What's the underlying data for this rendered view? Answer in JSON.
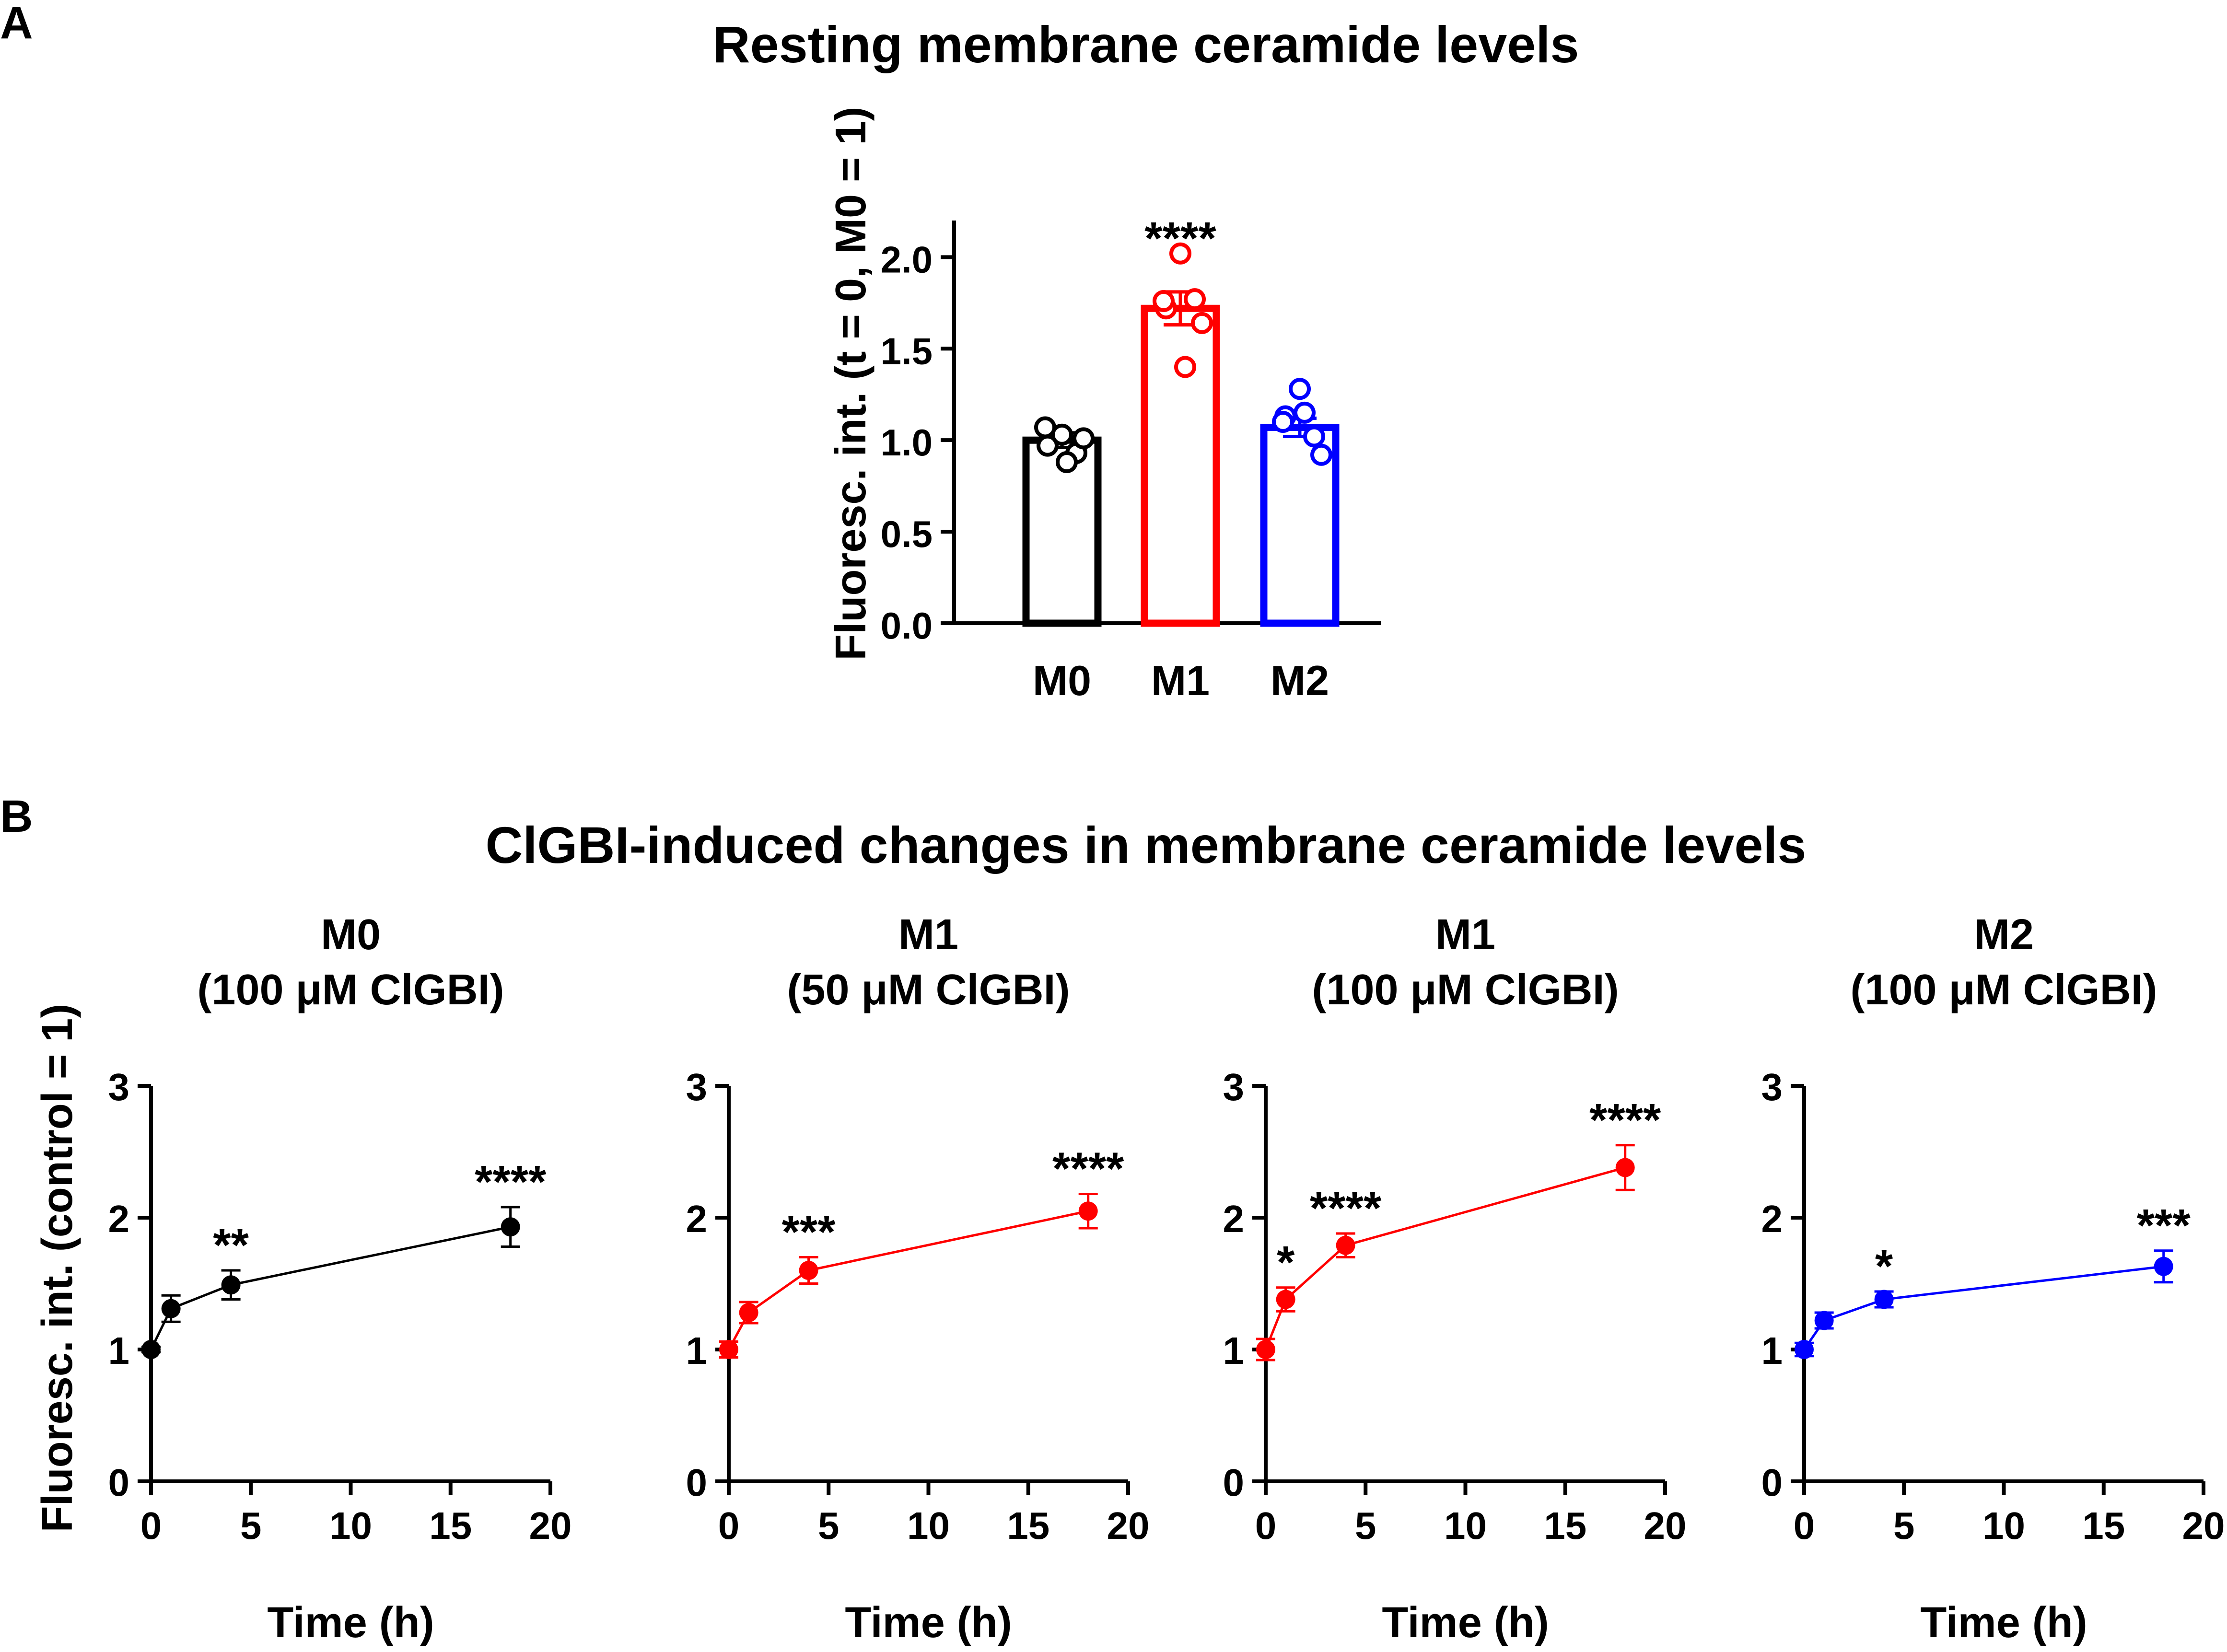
{
  "panel_a": {
    "letter": "A",
    "title": "Resting membrane ceramide levels",
    "ylabel": "Fluoresc. int. (t = 0, M0 = 1)"
  },
  "panel_b": {
    "letter": "B",
    "title": "ClGBI-induced changes in membrane ceramide levels",
    "ylabel": "Fluoresc. int. (control = 1)"
  },
  "chart_data": [
    {
      "type": "bar",
      "panel": "A",
      "title": "Resting membrane ceramide levels",
      "xlabel": "",
      "ylabel": "Fluoresc. int. (t = 0, M0 = 1)",
      "ylim": [
        0,
        2.2
      ],
      "yticks": [
        0.0,
        0.5,
        1.0,
        1.5,
        2.0
      ],
      "ytick_labels": [
        "0.0",
        "0.5",
        "1.0",
        "1.5",
        "2.0"
      ],
      "categories": [
        "M0",
        "M1",
        "M2"
      ],
      "values": [
        1.0,
        1.72,
        1.07
      ],
      "sem": [
        0.04,
        0.09,
        0.05
      ],
      "colors": [
        "#000000",
        "#ff0000",
        "#0000ff"
      ],
      "points": [
        [
          0.97,
          1.03,
          0.93,
          1.01,
          1.07,
          0.88
        ],
        [
          1.72,
          2.02,
          1.77,
          1.64,
          1.76,
          1.4
        ],
        [
          1.13,
          1.28,
          1.02,
          0.92,
          1.1,
          1.15
        ]
      ],
      "significance": [
        "",
        "****",
        ""
      ]
    },
    {
      "type": "line",
      "panel": "B",
      "title": "M0",
      "subtitle": "(100 μM ClGBI)",
      "xlabel": "Time (h)",
      "ylabel": "Fluoresc. int. (control = 1)",
      "color": "#000000",
      "xlim": [
        0,
        20
      ],
      "ylim": [
        0,
        3
      ],
      "xticks": [
        0,
        5,
        10,
        15,
        20
      ],
      "yticks": [
        0,
        1,
        2,
        3
      ],
      "x": [
        0,
        1,
        4,
        18
      ],
      "y": [
        1.0,
        1.31,
        1.49,
        1.93
      ],
      "err": [
        0.02,
        0.1,
        0.11,
        0.15
      ],
      "significance": [
        "",
        "",
        "**",
        "****"
      ]
    },
    {
      "type": "line",
      "panel": "B",
      "title": "M1",
      "subtitle": "(50 μM ClGBI)",
      "xlabel": "Time (h)",
      "ylabel": "",
      "color": "#ff0000",
      "xlim": [
        0,
        20
      ],
      "ylim": [
        0,
        3
      ],
      "xticks": [
        0,
        5,
        10,
        15,
        20
      ],
      "yticks": [
        0,
        1,
        2,
        3
      ],
      "x": [
        0,
        1,
        4,
        18
      ],
      "y": [
        1.0,
        1.28,
        1.6,
        2.05
      ],
      "err": [
        0.06,
        0.08,
        0.1,
        0.13
      ],
      "significance": [
        "",
        "",
        "***",
        "****"
      ]
    },
    {
      "type": "line",
      "panel": "B",
      "title": "M1",
      "subtitle": "(100 μM ClGBI)",
      "xlabel": "Time (h)",
      "ylabel": "",
      "color": "#ff0000",
      "xlim": [
        0,
        20
      ],
      "ylim": [
        0,
        3
      ],
      "xticks": [
        0,
        5,
        10,
        15,
        20
      ],
      "yticks": [
        0,
        1,
        2,
        3
      ],
      "x": [
        0,
        1,
        4,
        18
      ],
      "y": [
        1.0,
        1.38,
        1.79,
        2.38
      ],
      "err": [
        0.08,
        0.09,
        0.09,
        0.17
      ],
      "significance": [
        "",
        "*",
        "****",
        "****"
      ]
    },
    {
      "type": "line",
      "panel": "B",
      "title": "M2",
      "subtitle": "(100 μM ClGBI)",
      "xlabel": "Time (h)",
      "ylabel": "",
      "color": "#0000ff",
      "xlim": [
        0,
        20
      ],
      "ylim": [
        0,
        3
      ],
      "xticks": [
        0,
        5,
        10,
        15,
        20
      ],
      "yticks": [
        0,
        1,
        2,
        3
      ],
      "x": [
        0,
        1,
        4,
        18
      ],
      "y": [
        1.0,
        1.22,
        1.38,
        1.63
      ],
      "err": [
        0.05,
        0.06,
        0.06,
        0.12
      ],
      "significance": [
        "",
        "",
        "*",
        "***"
      ]
    }
  ]
}
